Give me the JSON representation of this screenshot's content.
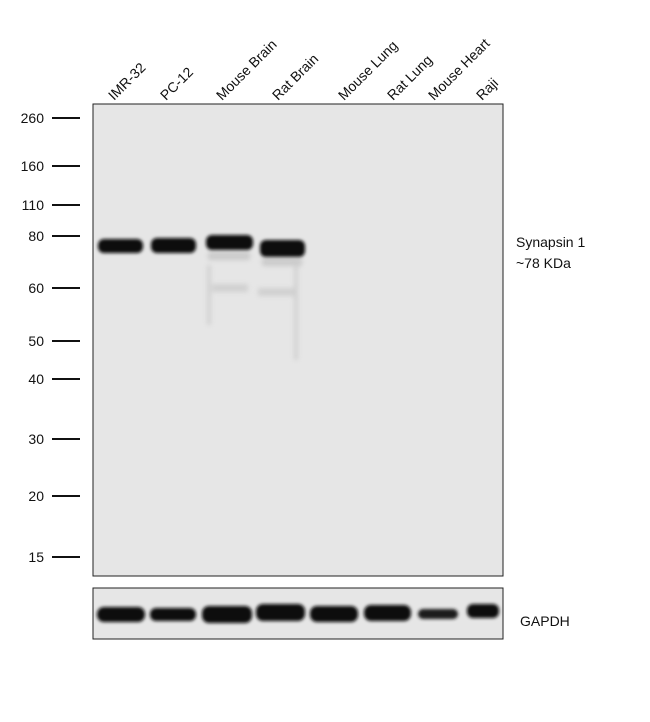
{
  "lanes": [
    "IMR-32",
    "PC-12",
    "Mouse Brain",
    "Rat Brain",
    "Mouse Lung",
    "Rat Lung",
    "Mouse Heart",
    "Raji"
  ],
  "markers": [
    260,
    160,
    110,
    80,
    60,
    50,
    40,
    30,
    20,
    15
  ],
  "target_label": [
    "Synapsin 1",
    "~78 KDa"
  ],
  "loading_control_label": "GAPDH"
}
